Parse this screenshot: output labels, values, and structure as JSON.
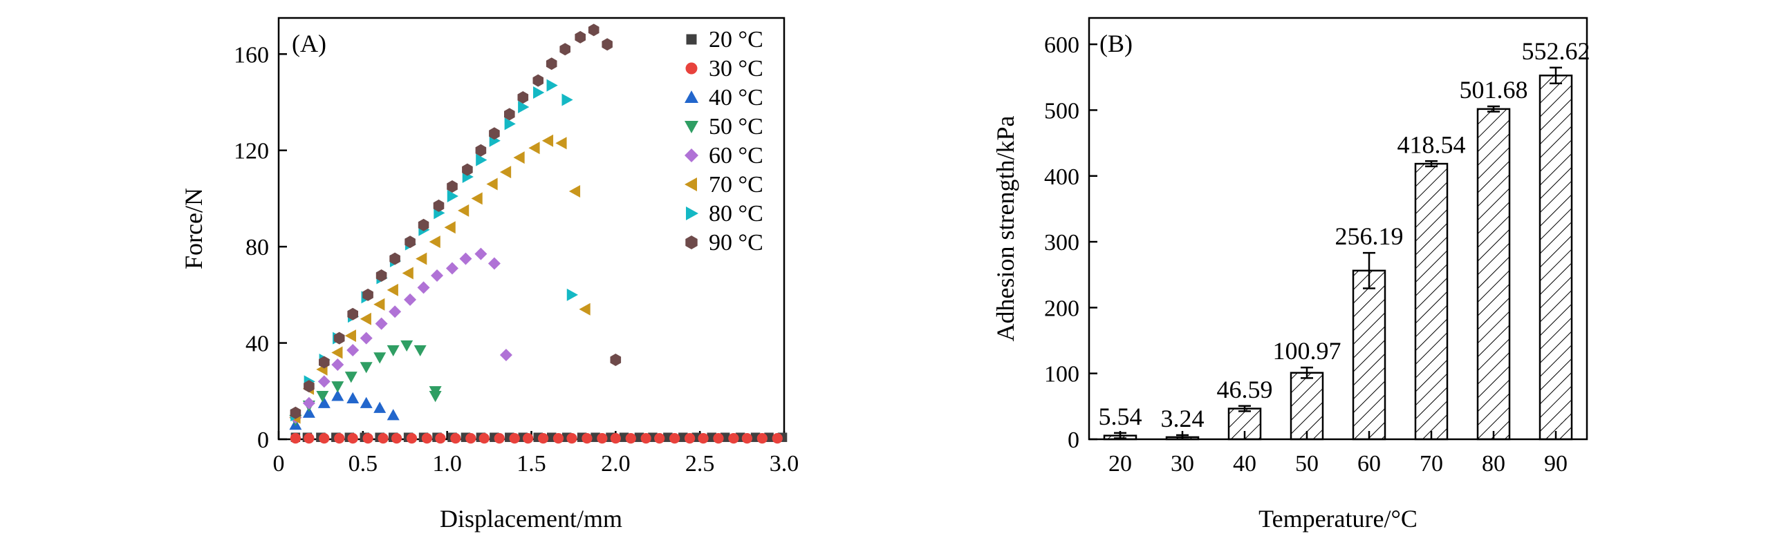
{
  "chart_data": [
    {
      "type": "scatter",
      "panel_label": "(A)",
      "title": "",
      "xlabel": "Displacement/mm",
      "ylabel": "Force/N",
      "xlim": [
        0,
        3.0
      ],
      "ylim": [
        0,
        175
      ],
      "x_ticks": [
        "0",
        "0.5",
        "1.0",
        "1.5",
        "2.0",
        "2.5",
        "3.0"
      ],
      "y_ticks": [
        "0",
        "40",
        "80",
        "120",
        "160"
      ],
      "legend_position": "top-right",
      "series": [
        {
          "name": "20 °C",
          "marker": "square",
          "color": "#404040",
          "x": [
            0.1,
            0.17,
            0.25,
            0.34,
            0.42,
            0.51,
            0.6,
            0.68,
            0.77,
            0.86,
            0.94,
            1.03,
            1.11,
            1.2,
            1.28,
            1.37,
            1.45,
            1.54,
            1.62,
            1.71,
            1.8,
            1.88,
            1.97,
            2.05,
            2.14,
            2.22,
            2.31,
            2.4,
            2.48,
            2.57,
            2.65,
            2.74,
            2.83,
            2.91,
            2.99
          ],
          "y": [
            0.8,
            0.8,
            0.8,
            0.8,
            0.8,
            0.8,
            0.8,
            0.8,
            0.8,
            0.8,
            0.8,
            0.8,
            0.8,
            0.8,
            0.8,
            0.8,
            0.8,
            0.8,
            0.8,
            0.8,
            0.8,
            0.8,
            0.8,
            0.8,
            0.8,
            0.8,
            0.8,
            0.8,
            0.8,
            0.8,
            0.8,
            0.8,
            0.8,
            0.8,
            0.8
          ]
        },
        {
          "name": "30 °C",
          "marker": "circle",
          "color": "#e8423c",
          "x": [
            0.1,
            0.18,
            0.27,
            0.36,
            0.44,
            0.53,
            0.62,
            0.7,
            0.79,
            0.88,
            0.96,
            1.05,
            1.14,
            1.22,
            1.31,
            1.4,
            1.48,
            1.57,
            1.66,
            1.74,
            1.83,
            1.92,
            2.0,
            2.09,
            2.18,
            2.26,
            2.35,
            2.44,
            2.52,
            2.61,
            2.7,
            2.78,
            2.87,
            2.96
          ],
          "y": [
            0.4,
            0.4,
            0.4,
            0.4,
            0.4,
            0.4,
            0.4,
            0.4,
            0.4,
            0.4,
            0.4,
            0.4,
            0.4,
            0.4,
            0.4,
            0.4,
            0.4,
            0.4,
            0.4,
            0.4,
            0.4,
            0.4,
            0.4,
            0.4,
            0.4,
            0.4,
            0.4,
            0.4,
            0.4,
            0.4,
            0.4,
            0.4,
            0.4,
            0.4
          ]
        },
        {
          "name": "40 °C",
          "marker": "triangle-up",
          "color": "#2266cc",
          "x": [
            0.1,
            0.18,
            0.27,
            0.35,
            0.44,
            0.52,
            0.6,
            0.68
          ],
          "y": [
            6,
            11,
            15,
            18,
            17,
            15,
            13,
            10
          ]
        },
        {
          "name": "50 °C",
          "marker": "triangle-down",
          "color": "#2f9e63",
          "x": [
            0.1,
            0.18,
            0.26,
            0.35,
            0.43,
            0.52,
            0.6,
            0.68,
            0.76,
            0.84,
            0.93,
            0.93
          ],
          "y": [
            8,
            14,
            18,
            22,
            26,
            30,
            34,
            37,
            39,
            37,
            20,
            18
          ]
        },
        {
          "name": "60 °C",
          "marker": "diamond",
          "color": "#b072d6",
          "x": [
            0.1,
            0.18,
            0.27,
            0.35,
            0.44,
            0.52,
            0.61,
            0.69,
            0.78,
            0.86,
            0.94,
            1.03,
            1.11,
            1.2,
            1.28,
            1.35
          ],
          "y": [
            9,
            15,
            24,
            31,
            37,
            42,
            48,
            53,
            58,
            63,
            68,
            71,
            75,
            77,
            73,
            35
          ]
        },
        {
          "name": "70 °C",
          "marker": "triangle-left",
          "color": "#c9961c",
          "x": [
            0.1,
            0.18,
            0.26,
            0.35,
            0.43,
            0.52,
            0.6,
            0.68,
            0.77,
            0.85,
            0.93,
            1.02,
            1.1,
            1.18,
            1.27,
            1.35,
            1.43,
            1.52,
            1.6,
            1.68,
            1.76,
            1.82
          ],
          "y": [
            9,
            21,
            29,
            36,
            43,
            50,
            56,
            62,
            69,
            75,
            82,
            88,
            95,
            100,
            106,
            111,
            117,
            121,
            124,
            123,
            103,
            54
          ]
        },
        {
          "name": "80 °C",
          "marker": "triangle-right",
          "color": "#14b8c4",
          "x": [
            0.1,
            0.18,
            0.27,
            0.35,
            0.44,
            0.52,
            0.61,
            0.69,
            0.78,
            0.86,
            0.95,
            1.03,
            1.12,
            1.2,
            1.28,
            1.37,
            1.45,
            1.54,
            1.62,
            1.71,
            1.74
          ],
          "y": [
            10,
            24,
            33,
            42,
            51,
            59,
            67,
            74,
            81,
            87,
            94,
            101,
            109,
            116,
            124,
            131,
            138,
            144,
            147,
            141,
            60
          ]
        },
        {
          "name": "90 °C",
          "marker": "hexagon",
          "color": "#6e4a4a",
          "x": [
            0.1,
            0.18,
            0.27,
            0.36,
            0.44,
            0.53,
            0.61,
            0.69,
            0.78,
            0.86,
            0.95,
            1.03,
            1.12,
            1.2,
            1.28,
            1.37,
            1.45,
            1.54,
            1.62,
            1.7,
            1.79,
            1.87,
            1.95,
            2.0
          ],
          "y": [
            11,
            22,
            32,
            42,
            52,
            60,
            68,
            75,
            82,
            89,
            97,
            105,
            112,
            120,
            127,
            135,
            142,
            149,
            156,
            162,
            167,
            170,
            164,
            33
          ]
        }
      ]
    },
    {
      "type": "bar",
      "panel_label": "(B)",
      "title": "",
      "xlabel": "Temperature/°C",
      "ylabel": "Adhesion strength/kPa",
      "ylim": [
        0,
        640
      ],
      "y_ticks": [
        "0",
        "100",
        "200",
        "300",
        "400",
        "500",
        "600"
      ],
      "categories": [
        "20",
        "30",
        "40",
        "50",
        "60",
        "70",
        "80",
        "90"
      ],
      "values": [
        5.54,
        3.24,
        46.59,
        100.97,
        256.19,
        418.54,
        501.68,
        552.62
      ],
      "value_labels": [
        "5.54",
        "3.24",
        "46.59",
        "100.97",
        "256.19",
        "418.54",
        "501.68",
        "552.62"
      ],
      "errors": [
        4,
        3,
        4,
        8,
        27,
        4,
        4,
        12
      ],
      "bar_fill": "hatched",
      "bar_color": "#ffffff"
    }
  ]
}
